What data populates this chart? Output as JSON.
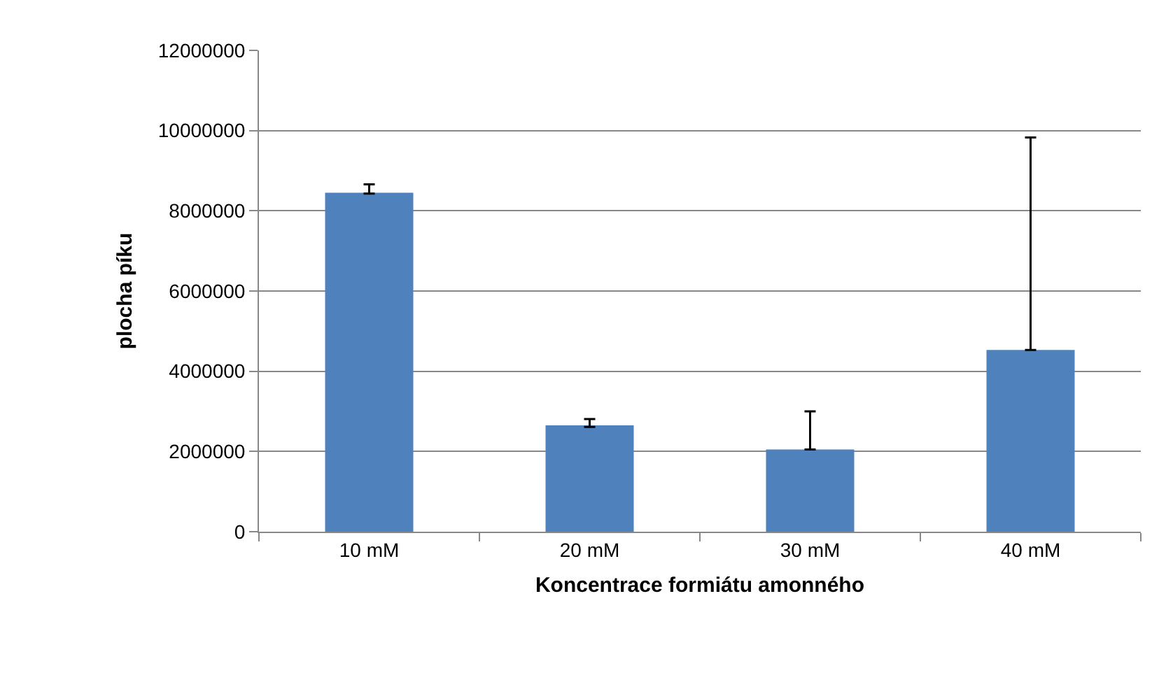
{
  "chart_data": {
    "type": "bar",
    "xlabel": "Koncentrace formiátu amonného",
    "ylabel": "plocha píku",
    "categories": [
      "10 mM",
      "20 mM",
      "30 mM",
      "40 mM"
    ],
    "values": [
      8450000,
      2650000,
      2050000,
      4530000
    ],
    "errors": [
      [
        8430000,
        8660000
      ],
      [
        2610000,
        2810000
      ],
      [
        2050000,
        3000000
      ],
      [
        4530000,
        9830000
      ]
    ],
    "color": "#4f81bd",
    "ylim": [
      0,
      12000000
    ],
    "yticks": [
      0,
      2000000,
      4000000,
      6000000,
      8000000,
      10000000,
      12000000
    ],
    "grid": "y"
  }
}
